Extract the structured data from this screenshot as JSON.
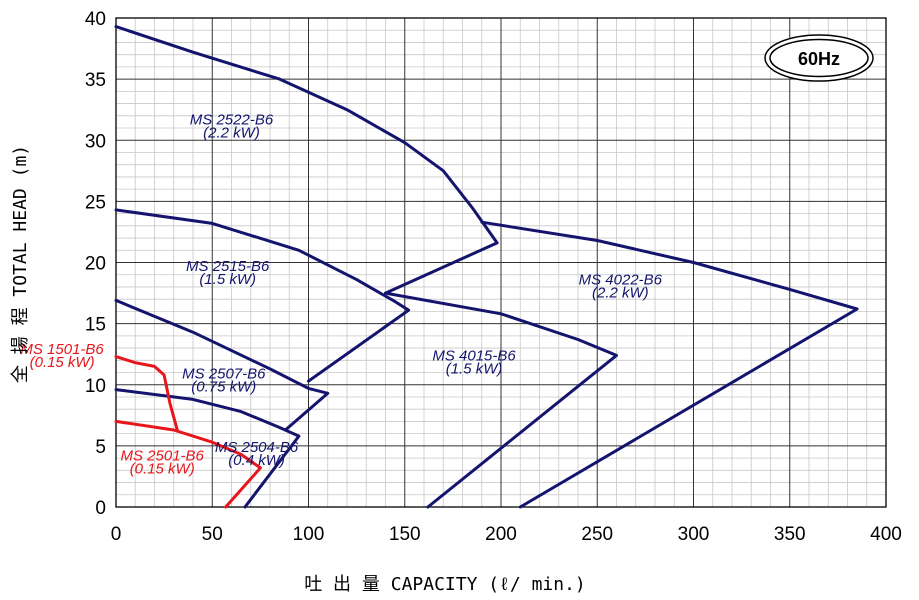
{
  "chart_data": {
    "type": "line",
    "frequency_badge": "60Hz",
    "xlabel": "吐 出 量  CAPACITY  (ℓ/ min.)",
    "ylabel": "全 揚 程  TOTAL HEAD  (m)",
    "xlim": [
      0,
      400
    ],
    "ylim": [
      0,
      40
    ],
    "x_ticks": [
      "0",
      "50",
      "100",
      "150",
      "200",
      "250",
      "300",
      "350",
      "400"
    ],
    "y_ticks": [
      "0",
      "5",
      "10",
      "15",
      "20",
      "25",
      "30",
      "35",
      "40"
    ],
    "grid": true,
    "colors": {
      "navy": "#14146e",
      "red": "#e8161b",
      "grid_major": "#333333",
      "grid_minor": "#c8c8c8"
    },
    "series": [
      {
        "model": "MS 2522-B6",
        "power": "(2.2 kW)",
        "color": "#14146e",
        "points": [
          [
            0,
            39.3
          ],
          [
            40,
            37.2
          ],
          [
            85,
            35.0
          ],
          [
            120,
            32.5
          ],
          [
            150,
            29.8
          ],
          [
            170,
            27.5
          ],
          [
            185,
            24.5
          ],
          [
            198,
            21.6
          ],
          [
            140,
            17.5
          ]
        ],
        "label_pos": [
          60,
          31.3
        ]
      },
      {
        "model": "MS 2515-B6",
        "power": "(1.5 kW)",
        "color": "#14146e",
        "points": [
          [
            0,
            24.3
          ],
          [
            50,
            23.2
          ],
          [
            95,
            21.0
          ],
          [
            125,
            18.6
          ],
          [
            145,
            16.8
          ],
          [
            152,
            16.1
          ],
          [
            100,
            10.3
          ]
        ],
        "label_pos": [
          58,
          19.3
        ]
      },
      {
        "model": "MS 2507-B6",
        "power": "(0.75 kW)",
        "color": "#14146e",
        "points": [
          [
            0,
            16.9
          ],
          [
            40,
            14.3
          ],
          [
            80,
            11.3
          ],
          [
            100,
            9.7
          ],
          [
            110,
            9.3
          ],
          [
            88,
            6.3
          ]
        ],
        "label_pos": [
          56,
          10.5
        ]
      },
      {
        "model": "MS 2504-B6",
        "power": "(0.4 kW)",
        "color": "#14146e",
        "points": [
          [
            0,
            9.6
          ],
          [
            40,
            8.8
          ],
          [
            65,
            7.8
          ],
          [
            85,
            6.5
          ],
          [
            95,
            5.8
          ],
          [
            67,
            0
          ]
        ],
        "label_pos": [
          73,
          4.5
        ]
      },
      {
        "model": "MS 4022-B6",
        "power": "(2.2 kW)",
        "color": "#14146e",
        "points": [
          [
            190,
            23.3
          ],
          [
            250,
            21.8
          ],
          [
            300,
            20.0
          ],
          [
            350,
            17.8
          ],
          [
            385,
            16.2
          ],
          [
            210,
            0
          ]
        ],
        "label_pos": [
          262,
          18.2
        ]
      },
      {
        "model": "MS 4015-B6",
        "power": "(1.5 kW)",
        "color": "#14146e",
        "points": [
          [
            140,
            17.5
          ],
          [
            200,
            15.8
          ],
          [
            240,
            13.7
          ],
          [
            260,
            12.4
          ],
          [
            162,
            0
          ]
        ],
        "label_pos": [
          186,
          12.0
        ]
      },
      {
        "model": "MS 1501-B6",
        "power": "(0.15 kW)",
        "color": "#e8161b",
        "points": [
          [
            0,
            12.3
          ],
          [
            10,
            11.8
          ],
          [
            20,
            11.5
          ],
          [
            25,
            10.8
          ],
          [
            28,
            8.5
          ],
          [
            32,
            6.2
          ]
        ],
        "label_pos": [
          -28,
          12.5
        ]
      },
      {
        "model": "MS 2501-B6",
        "power": "(0.15 kW)",
        "color": "#e8161b",
        "points": [
          [
            0,
            7.0
          ],
          [
            30,
            6.3
          ],
          [
            50,
            5.3
          ],
          [
            65,
            4.3
          ],
          [
            75,
            3.2
          ],
          [
            57,
            0
          ]
        ],
        "label_pos": [
          24,
          3.8
        ]
      }
    ]
  }
}
